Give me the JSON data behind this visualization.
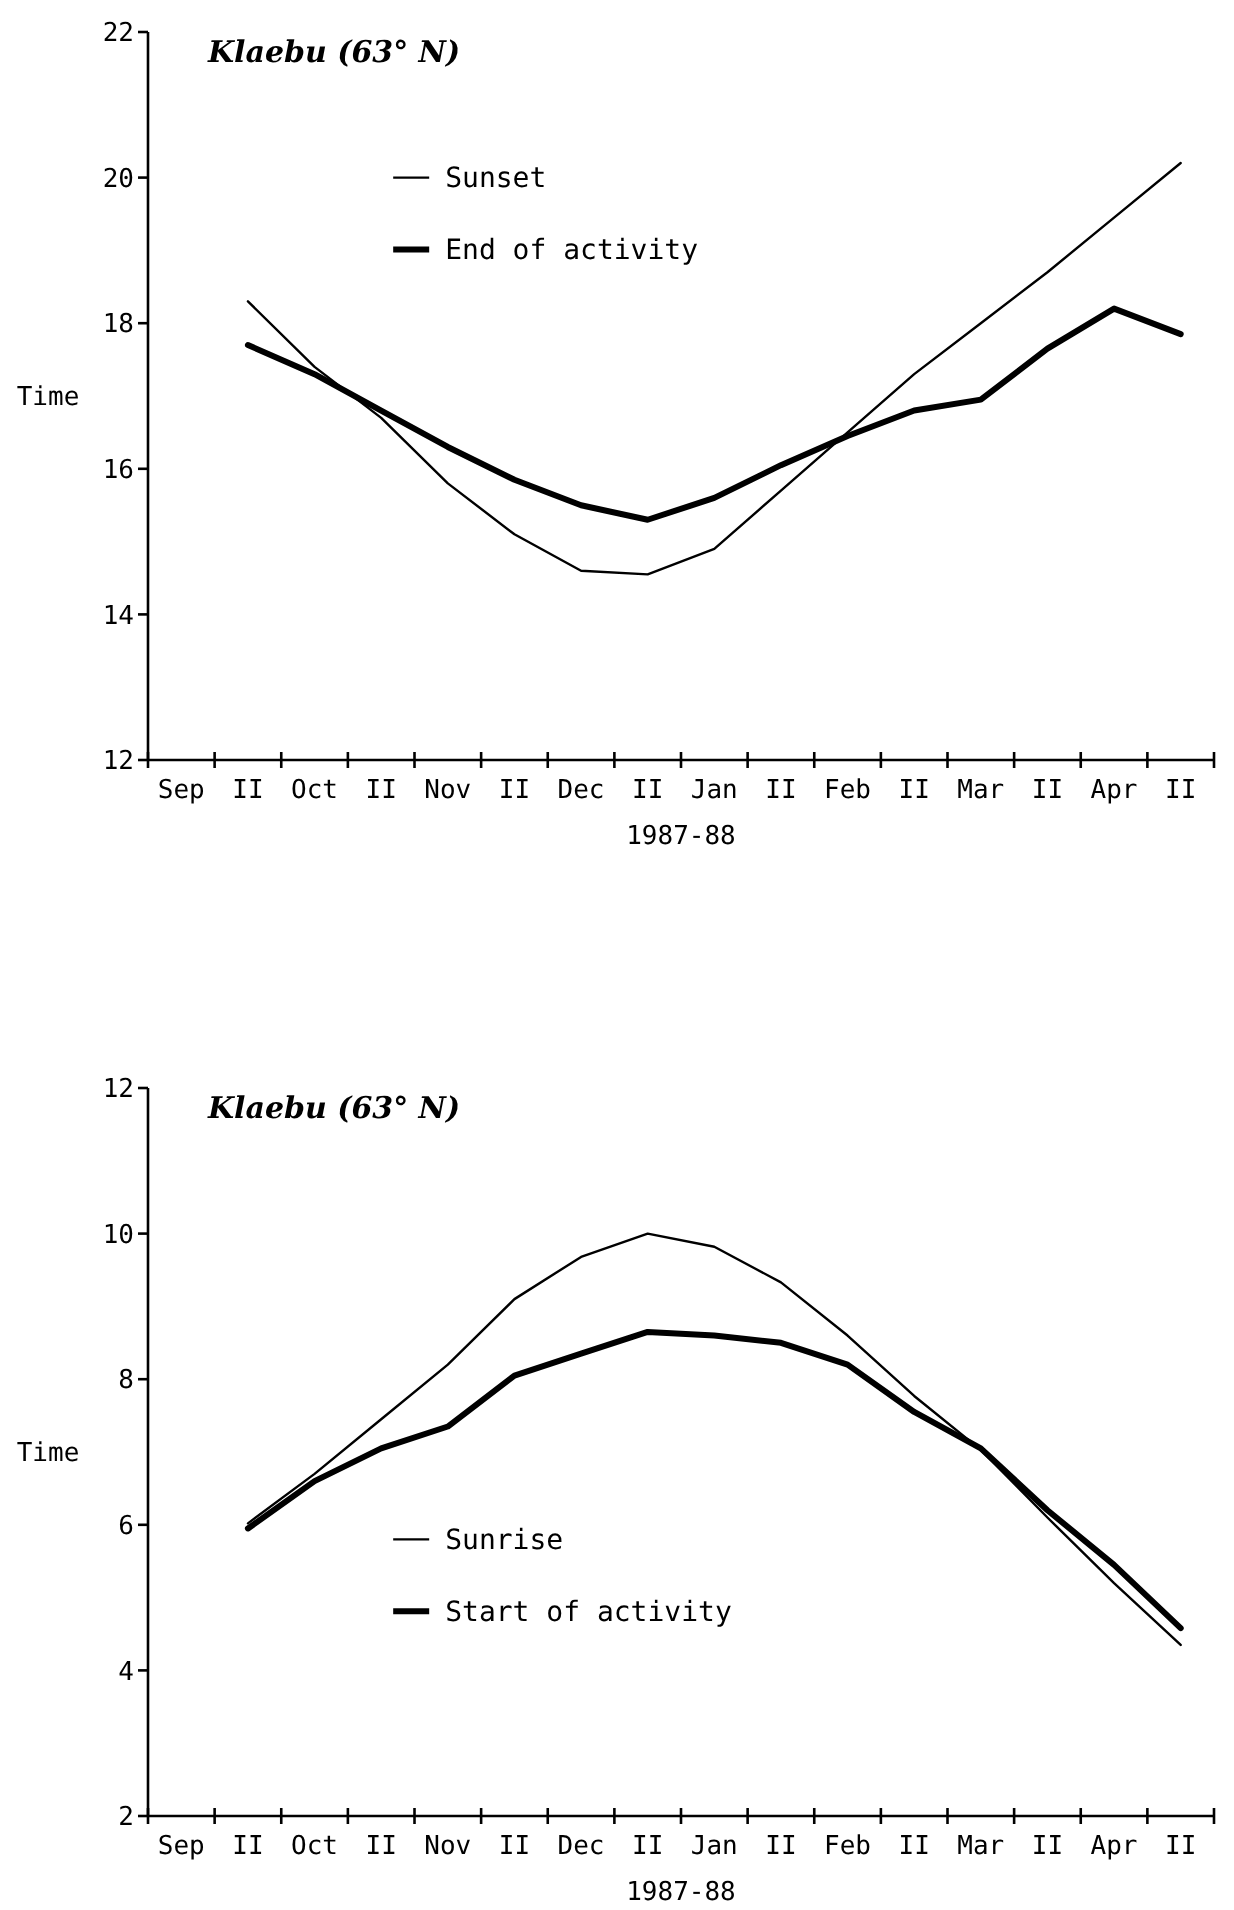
{
  "chart_data": [
    {
      "type": "line",
      "title": "Klaebu (63° N)",
      "xlabel": "1987-88",
      "ylabel": "Time",
      "categories": [
        "Sep",
        "II",
        "Oct",
        "II",
        "Nov",
        "II",
        "Dec",
        "II",
        "Jan",
        "II",
        "Feb",
        "II",
        "Mar",
        "II",
        "Apr",
        "II"
      ],
      "ylim": [
        12,
        22
      ],
      "yticks": [
        12,
        14,
        16,
        18,
        20,
        22
      ],
      "grid": false,
      "legend": "top left",
      "marker": "none",
      "series": [
        {
          "name": "Sunset",
          "color": "#000000",
          "values": [
            null,
            18.3,
            17.4,
            16.7,
            15.8,
            15.1,
            14.6,
            14.55,
            14.9,
            15.7,
            16.5,
            17.3,
            18.0,
            18.7,
            19.45,
            20.2
          ]
        },
        {
          "name": "End of activity",
          "color": "#000000",
          "values": [
            null,
            17.7,
            17.3,
            16.8,
            16.3,
            15.85,
            15.5,
            15.3,
            15.6,
            16.05,
            16.45,
            16.8,
            16.95,
            17.65,
            18.2,
            17.85
          ]
        }
      ]
    },
    {
      "type": "line",
      "title": "Klaebu (63° N)",
      "xlabel": "1987-88",
      "ylabel": "Time",
      "categories": [
        "Sep",
        "II",
        "Oct",
        "II",
        "Nov",
        "II",
        "Dec",
        "II",
        "Jan",
        "II",
        "Feb",
        "II",
        "Mar",
        "II",
        "Apr",
        "II"
      ],
      "ylim": [
        2,
        12
      ],
      "yticks": [
        2,
        4,
        6,
        8,
        10,
        12
      ],
      "grid": false,
      "legend": "bottom left",
      "marker": "none",
      "series": [
        {
          "name": "Sunrise",
          "color": "#000000",
          "values": [
            null,
            6.02,
            6.7,
            7.45,
            8.2,
            9.1,
            9.68,
            10.0,
            9.82,
            9.33,
            8.6,
            7.77,
            7.03,
            6.1,
            5.2,
            4.35
          ]
        },
        {
          "name": "Start of activity",
          "color": "#000000",
          "values": [
            null,
            5.95,
            6.6,
            7.05,
            7.35,
            8.05,
            8.35,
            8.65,
            8.6,
            8.5,
            8.2,
            7.55,
            7.05,
            6.2,
            5.45,
            4.58
          ]
        }
      ]
    }
  ]
}
